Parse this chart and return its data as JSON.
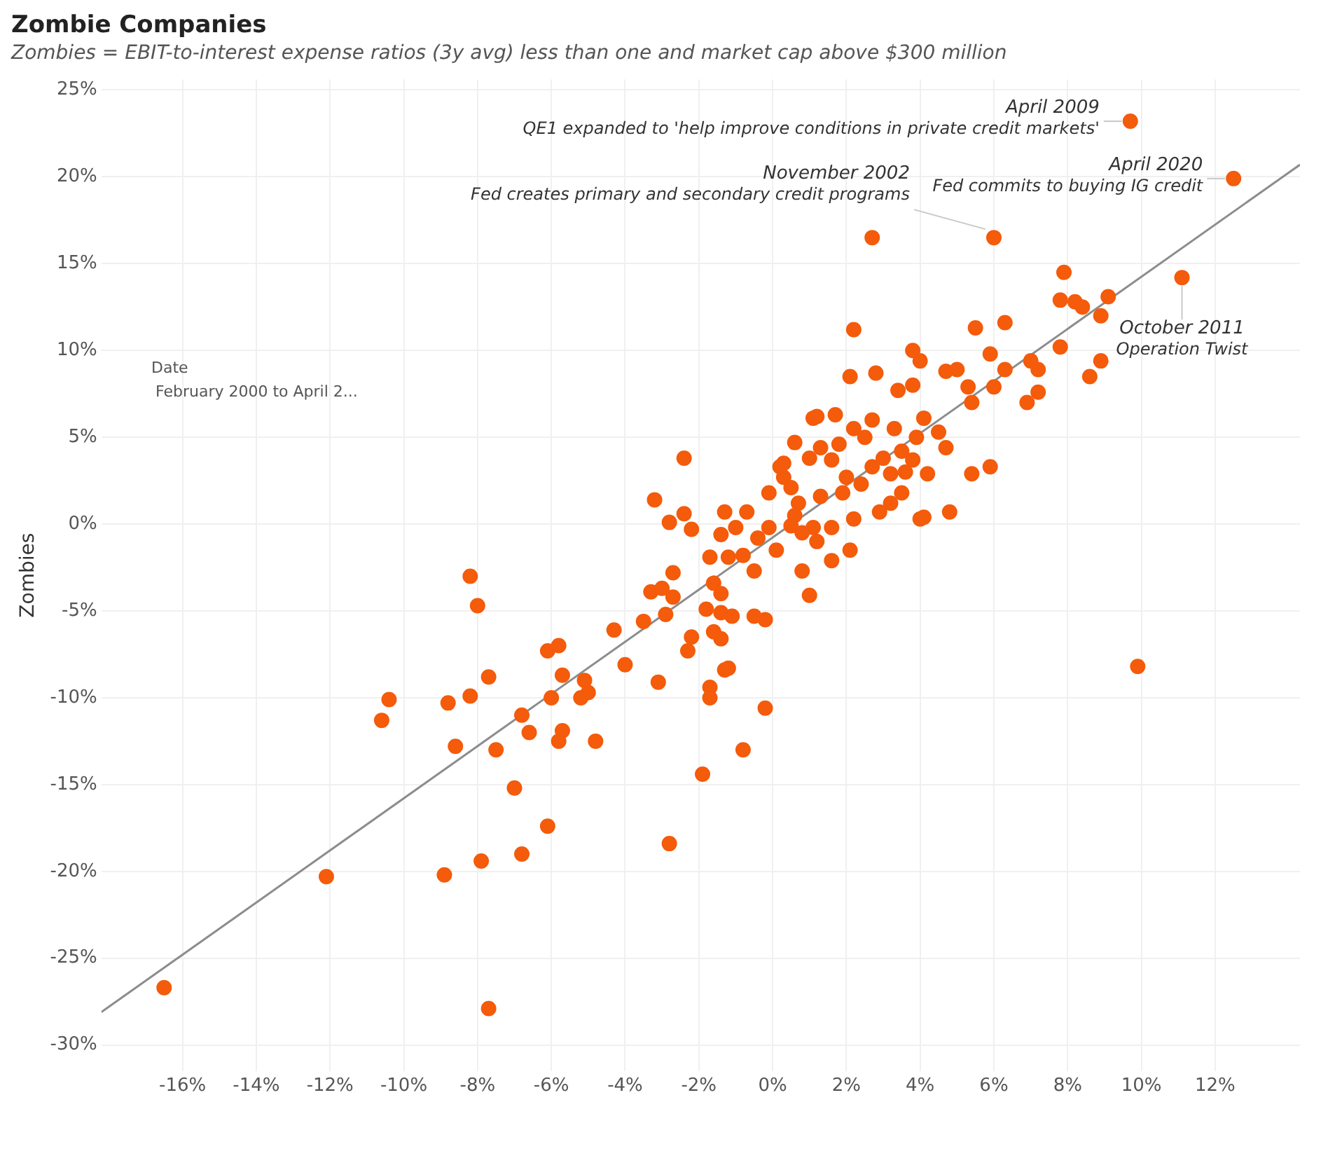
{
  "chart_data": {
    "type": "scatter",
    "title": "Zombie Companies",
    "subtitle": "Zombies = EBIT-to-interest expense ratios (3y avg) less than one and market cap above $300 million",
    "ylabel": "Zombies",
    "xlim": [
      -18.2,
      14.3
    ],
    "ylim": [
      -31.5,
      25.6
    ],
    "xticks": [
      {
        "value": -16,
        "label": "-16%"
      },
      {
        "value": -14,
        "label": "-14%"
      },
      {
        "value": -12,
        "label": "-12%"
      },
      {
        "value": -10,
        "label": "-10%"
      },
      {
        "value": -8,
        "label": "-8%"
      },
      {
        "value": -6,
        "label": "-6%"
      },
      {
        "value": -4,
        "label": "-4%"
      },
      {
        "value": -2,
        "label": "-2%"
      },
      {
        "value": 0,
        "label": "0%"
      },
      {
        "value": 2,
        "label": "2%"
      },
      {
        "value": 4,
        "label": "4%"
      },
      {
        "value": 6,
        "label": "6%"
      },
      {
        "value": 8,
        "label": "8%"
      },
      {
        "value": 10,
        "label": "10%"
      },
      {
        "value": 12,
        "label": "12%"
      }
    ],
    "yticks": [
      {
        "value": -30,
        "label": "-30%"
      },
      {
        "value": -25,
        "label": "-25%"
      },
      {
        "value": -20,
        "label": "-20%"
      },
      {
        "value": -15,
        "label": "-15%"
      },
      {
        "value": -10,
        "label": "-10%"
      },
      {
        "value": -5,
        "label": "-5%"
      },
      {
        "value": 0,
        "label": "0%"
      },
      {
        "value": 5,
        "label": "5%"
      },
      {
        "value": 10,
        "label": "10%"
      },
      {
        "value": 15,
        "label": "15%"
      },
      {
        "value": 20,
        "label": "20%"
      },
      {
        "value": 25,
        "label": "25%"
      }
    ],
    "grid": true,
    "legend": false,
    "marker": "circle",
    "series": [
      {
        "type": "scatter",
        "color": "#f45b0b",
        "x": [
          -16.5,
          -12.1,
          -10.6,
          -10.4,
          -8.8,
          -8.6,
          -8.2,
          -8.0,
          -8.2,
          -8.9,
          -7.9,
          -7.7,
          -7.7,
          -6.8,
          -7.5,
          -7.0,
          -6.8,
          -6.1,
          -5.8,
          -5.7,
          -6.0,
          -6.6,
          -5.7,
          -5.8,
          -6.1,
          -5.1,
          -5.0,
          -5.2,
          -4.8,
          -4.3,
          -4.0,
          -3.5,
          -3.2,
          -3.3,
          -3.0,
          -3.1,
          -2.9,
          -2.7,
          -2.8,
          -2.4,
          -2.4,
          -2.2,
          -2.7,
          -2.8,
          -2.2,
          -2.3,
          -1.7,
          -1.6,
          -1.4,
          -1.8,
          -1.4,
          -1.1,
          -1.6,
          -1.4,
          -1.3,
          -1.2,
          -1.7,
          -1.7,
          -1.9,
          -0.8,
          -0.5,
          -0.2,
          -0.2,
          -1.3,
          -0.7,
          -1.0,
          -1.4,
          -0.4,
          0.1,
          -0.5,
          -1.2,
          -0.8,
          0.6,
          0.2,
          0.5,
          0.7,
          1.0,
          0.8,
          1.1,
          1.1,
          9.7,
          12.5,
          2.7,
          6.0,
          7.9,
          11.1,
          7.8,
          8.2,
          8.4,
          9.1,
          8.9,
          2.2,
          5.5,
          6.3,
          3.8,
          4.0,
          5.9,
          7.8,
          7.0,
          7.2,
          8.9,
          8.6,
          2.1,
          2.8,
          3.4,
          3.8,
          4.7,
          5.0,
          5.3,
          5.4,
          6.3,
          6.0,
          6.9,
          7.2,
          1.2,
          1.7,
          2.7,
          2.2,
          2.5,
          3.3,
          4.1,
          3.9,
          4.5,
          4.7,
          1.3,
          1.8,
          1.0,
          1.6,
          3.0,
          3.5,
          3.8,
          0.3,
          2.0,
          2.7,
          3.2,
          3.6,
          5.4,
          5.9,
          4.2,
          1.3,
          1.9,
          2.4,
          2.9,
          2.2,
          3.2,
          3.5,
          4.0,
          4.1,
          4.8,
          -0.1,
          0.5,
          0.8,
          1.6,
          1.2,
          2.1,
          1.6,
          9.9,
          0.3,
          -0.1,
          0.6
        ],
        "values": [
          -26.7,
          -20.3,
          -11.3,
          -10.1,
          -10.3,
          -12.8,
          -3.0,
          -4.7,
          -9.9,
          -20.2,
          -19.4,
          -27.9,
          -8.8,
          -11.0,
          -13.0,
          -15.2,
          -19.0,
          -7.3,
          -7.0,
          -8.7,
          -10.0,
          -12.0,
          -11.9,
          -12.5,
          -17.4,
          -9.0,
          -9.7,
          -10.0,
          -12.5,
          -6.1,
          -8.1,
          -5.6,
          1.4,
          -3.9,
          -3.7,
          -9.1,
          -5.2,
          -2.8,
          0.1,
          3.8,
          0.6,
          -0.3,
          -4.2,
          -18.4,
          -6.5,
          -7.3,
          -1.9,
          -3.4,
          -4.0,
          -4.9,
          -5.1,
          -5.3,
          -6.2,
          -6.6,
          -8.4,
          -8.3,
          -9.4,
          -10.0,
          -14.4,
          -13.0,
          -5.3,
          -5.5,
          -10.6,
          0.7,
          0.7,
          -0.2,
          -0.6,
          -0.8,
          -1.5,
          -2.7,
          -1.9,
          -1.8,
          4.7,
          3.3,
          2.1,
          1.2,
          -4.1,
          -2.7,
          -0.2,
          6.1,
          23.2,
          19.9,
          16.5,
          16.5,
          14.5,
          14.2,
          12.9,
          12.8,
          12.5,
          13.1,
          12.0,
          11.2,
          11.3,
          11.6,
          10.0,
          9.4,
          9.8,
          10.2,
          9.4,
          8.9,
          9.4,
          8.5,
          8.5,
          8.7,
          7.7,
          8.0,
          8.8,
          8.9,
          7.9,
          7.0,
          8.9,
          7.9,
          7.0,
          7.6,
          6.2,
          6.3,
          6.0,
          5.5,
          5.0,
          5.5,
          6.1,
          5.0,
          5.3,
          4.4,
          4.4,
          4.6,
          3.8,
          3.7,
          3.8,
          4.2,
          3.7,
          2.7,
          2.7,
          3.3,
          2.9,
          3.0,
          2.9,
          3.3,
          2.9,
          1.6,
          1.8,
          2.3,
          0.7,
          0.3,
          1.2,
          1.8,
          0.3,
          0.4,
          0.7,
          -0.2,
          -0.1,
          -0.5,
          -0.2,
          -1.0,
          -1.5,
          -2.1,
          -8.2,
          3.5,
          1.8,
          0.5
        ]
      },
      {
        "type": "line",
        "color": "#8c8c8c",
        "marker": "none",
        "x": [
          -18.2,
          14.3
        ],
        "values": [
          -28.1,
          20.7
        ]
      }
    ],
    "annotations": [
      {
        "text": "April 2009\nQE1 expanded to 'help improve conditions in private credit markets'",
        "x": 9.7,
        "y": 23.2
      },
      {
        "text": "April 2020\nFed commits to buying IG credit",
        "x": 12.5,
        "y": 19.9
      },
      {
        "text": "November 2002\nFed creates primary and secondary credit programs",
        "x": 6.0,
        "y": 16.5
      },
      {
        "text": "October 2011\nOperation Twist",
        "x": 11.1,
        "y": 14.2
      },
      "Date",
      "February 2000 to April 2..."
    ]
  }
}
